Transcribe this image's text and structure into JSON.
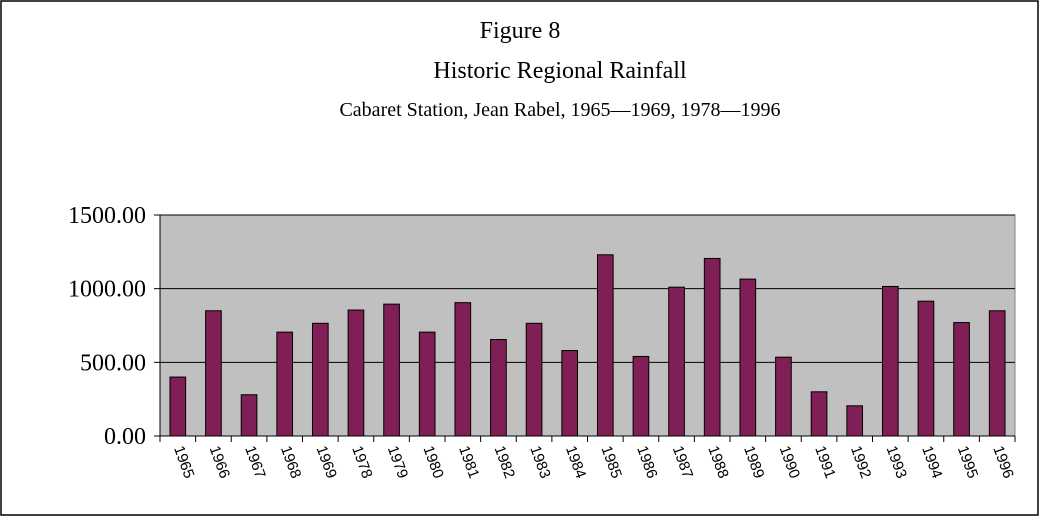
{
  "chart_data": {
    "type": "bar",
    "title": "Figure 8",
    "subtitle": "Historic Regional Rainfall",
    "annotation": "Cabaret Station, Jean Rabel, 1965—1969, 1978—1996",
    "categories": [
      "1965",
      "1966",
      "1967",
      "1968",
      "1969",
      "1978",
      "1979",
      "1980",
      "1981",
      "1982",
      "1983",
      "1984",
      "1985",
      "1986",
      "1987",
      "1988",
      "1989",
      "1990",
      "1991",
      "1992",
      "1993",
      "1994",
      "1995",
      "1996"
    ],
    "values": [
      400,
      850,
      280,
      705,
      765,
      855,
      895,
      705,
      905,
      655,
      765,
      580,
      1230,
      540,
      1010,
      1205,
      1065,
      535,
      300,
      205,
      1015,
      915,
      770,
      850
    ],
    "color": "#7f1f55",
    "ylim": [
      0,
      1500
    ],
    "yticks": [
      {
        "value": 0,
        "label": "0.00"
      },
      {
        "value": 500,
        "label": "500.00"
      },
      {
        "value": 1000,
        "label": "1000.00"
      },
      {
        "value": 1500,
        "label": "1500.00"
      }
    ],
    "grid": true
  }
}
